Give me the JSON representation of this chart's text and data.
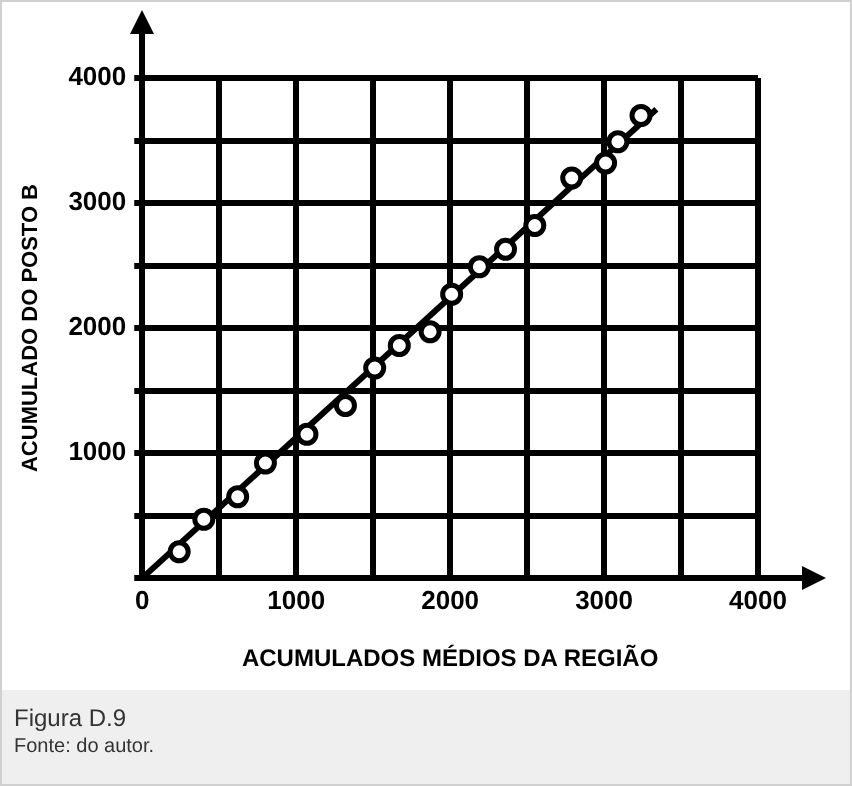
{
  "chart_data": {
    "type": "scatter",
    "xlabel": "ACUMULADOS MÉDIOS DA REGIÃO",
    "ylabel": "ACUMULADO DO POSTO B",
    "annotations": [
      "Figura D.9",
      "Fonte: do autor."
    ],
    "xlim": [
      0,
      4000
    ],
    "ylim": [
      0,
      4000
    ],
    "xticks": [
      0,
      {
        "value": 500,
        "label": null
      },
      1000,
      {
        "value": 1500,
        "label": null
      },
      2000,
      {
        "value": 2500,
        "label": null
      },
      3000,
      {
        "value": 3500,
        "label": null
      },
      4000
    ],
    "yticks": [
      {
        "value": 0,
        "label": null
      },
      {
        "value": 500,
        "label": null
      },
      1000,
      {
        "value": 1500,
        "label": null
      },
      2000,
      {
        "value": 2500,
        "label": null
      },
      3000,
      {
        "value": 3500,
        "label": null
      },
      4000
    ],
    "grid": true,
    "legend": false,
    "marker": "circle",
    "series": [
      {
        "color": "#000000",
        "x": [
          240,
          400,
          620,
          800,
          1070,
          1320,
          1510,
          1670,
          1870,
          2010,
          2190,
          2360,
          2550,
          2790,
          3010,
          3090,
          3240
        ],
        "values": [
          210,
          470,
          650,
          920,
          1150,
          1380,
          1680,
          1860,
          1970,
          2270,
          2490,
          2630,
          2820,
          3200,
          3320,
          3490,
          3700
        ]
      },
      {
        "type": "line",
        "color": "#000000",
        "x": [
          0,
          3340
        ],
        "values": [
          0,
          3750
        ],
        "marker": "none",
        "line_style": "solid"
      }
    ]
  }
}
